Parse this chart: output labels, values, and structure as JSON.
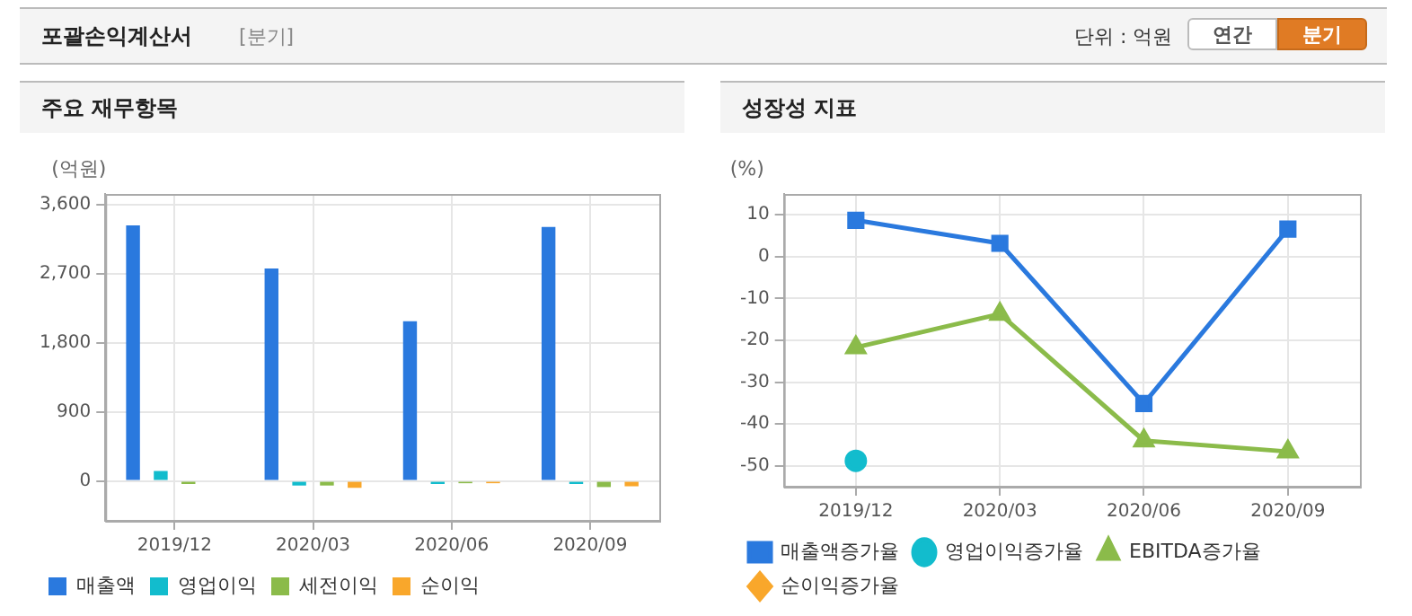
{
  "chart_data": [
    {
      "type": "other",
      "title": "포괄손익계산서",
      "annotations": [
        "[분기]",
        "단위 : 억원",
        "연간",
        "분기"
      ]
    },
    {
      "type": "bar",
      "title": "주요 재무항목",
      "ylabel": "(억원)",
      "categories": [
        "2019/12",
        "2020/03",
        "2020/06",
        "2020/09"
      ],
      "series": [
        {
          "name": "매출액",
          "color": "#2a79de",
          "values": [
            3330,
            2770,
            2080,
            3310
          ]
        },
        {
          "name": "영업이익",
          "color": "#12bccd",
          "values": [
            130,
            -60,
            -40,
            -40
          ]
        },
        {
          "name": "세전이익",
          "color": "#8bbb4a",
          "values": [
            -40,
            -60,
            -30,
            -80
          ]
        },
        {
          "name": "순이익",
          "color": "#f9a72b",
          "values": [
            null,
            -90,
            -30,
            -70
          ]
        }
      ],
      "ylim": [
        -520,
        3740
      ],
      "yticks": [
        {
          "value": 0,
          "label": "0"
        },
        {
          "value": 900,
          "label": "900"
        },
        {
          "value": 1800,
          "label": "1,800"
        },
        {
          "value": 2700,
          "label": "2,700"
        },
        {
          "value": 3600,
          "label": "3,600"
        }
      ],
      "grid": true,
      "legend": "bottom"
    },
    {
      "type": "line",
      "title": "성장성 지표",
      "ylabel": "(%)",
      "categories": [
        "2019/12",
        "2020/03",
        "2020/06",
        "2020/09"
      ],
      "series": [
        {
          "name": "매출액증가율",
          "color": "#2a79de",
          "marker": "square",
          "values": [
            8.7,
            3.2,
            -35.1,
            6.6
          ]
        },
        {
          "name": "영업이익증가율",
          "color": "#12bccd",
          "marker": "circle",
          "values": [
            -48.8,
            null,
            null,
            null
          ]
        },
        {
          "name": "EBITDA증가율",
          "color": "#8bbb4a",
          "marker": "triangle",
          "values": [
            -21.7,
            -13.7,
            -44.0,
            -46.6
          ]
        },
        {
          "name": "순이익증가율",
          "color": "#f9a72b",
          "marker": "diamond",
          "values": [
            null,
            null,
            null,
            null
          ]
        }
      ],
      "ylim": [
        -55,
        15
      ],
      "yticks": [
        -50,
        -40,
        -30,
        -20,
        -10,
        0,
        10
      ],
      "grid": true,
      "legend": "bottom"
    }
  ]
}
